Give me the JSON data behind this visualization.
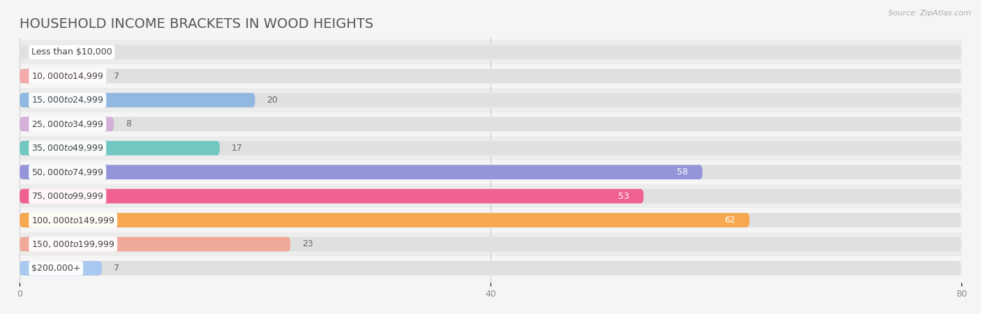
{
  "title": "HOUSEHOLD INCOME BRACKETS IN WOOD HEIGHTS",
  "source": "Source: ZipAtlas.com",
  "categories": [
    "Less than $10,000",
    "$10,000 to $14,999",
    "$15,000 to $24,999",
    "$25,000 to $34,999",
    "$35,000 to $49,999",
    "$50,000 to $74,999",
    "$75,000 to $99,999",
    "$100,000 to $149,999",
    "$150,000 to $199,999",
    "$200,000+"
  ],
  "values": [
    0,
    7,
    20,
    8,
    17,
    58,
    53,
    62,
    23,
    7
  ],
  "bar_colors": [
    "#f5c99a",
    "#f4aaaa",
    "#90b8e0",
    "#d4b0d8",
    "#72c8c0",
    "#9494d8",
    "#f06090",
    "#f5a850",
    "#f0a898",
    "#a8c8f0"
  ],
  "label_colors_on_bar": [
    "#888888",
    "#888888",
    "#888888",
    "#888888",
    "#888888",
    "#ffffff",
    "#ffffff",
    "#ffffff",
    "#888888",
    "#888888"
  ],
  "background_color": "#f5f5f5",
  "row_bg_colors": [
    "#ececec",
    "#f5f5f5"
  ],
  "bar_bg_color": "#e0e0e0",
  "xlim": [
    0,
    80
  ],
  "xticks": [
    0,
    40,
    80
  ],
  "title_fontsize": 14,
  "axis_label_fontsize": 9,
  "bar_label_fontsize": 9,
  "cat_label_fontsize": 9,
  "bar_height": 0.6,
  "n": 10
}
